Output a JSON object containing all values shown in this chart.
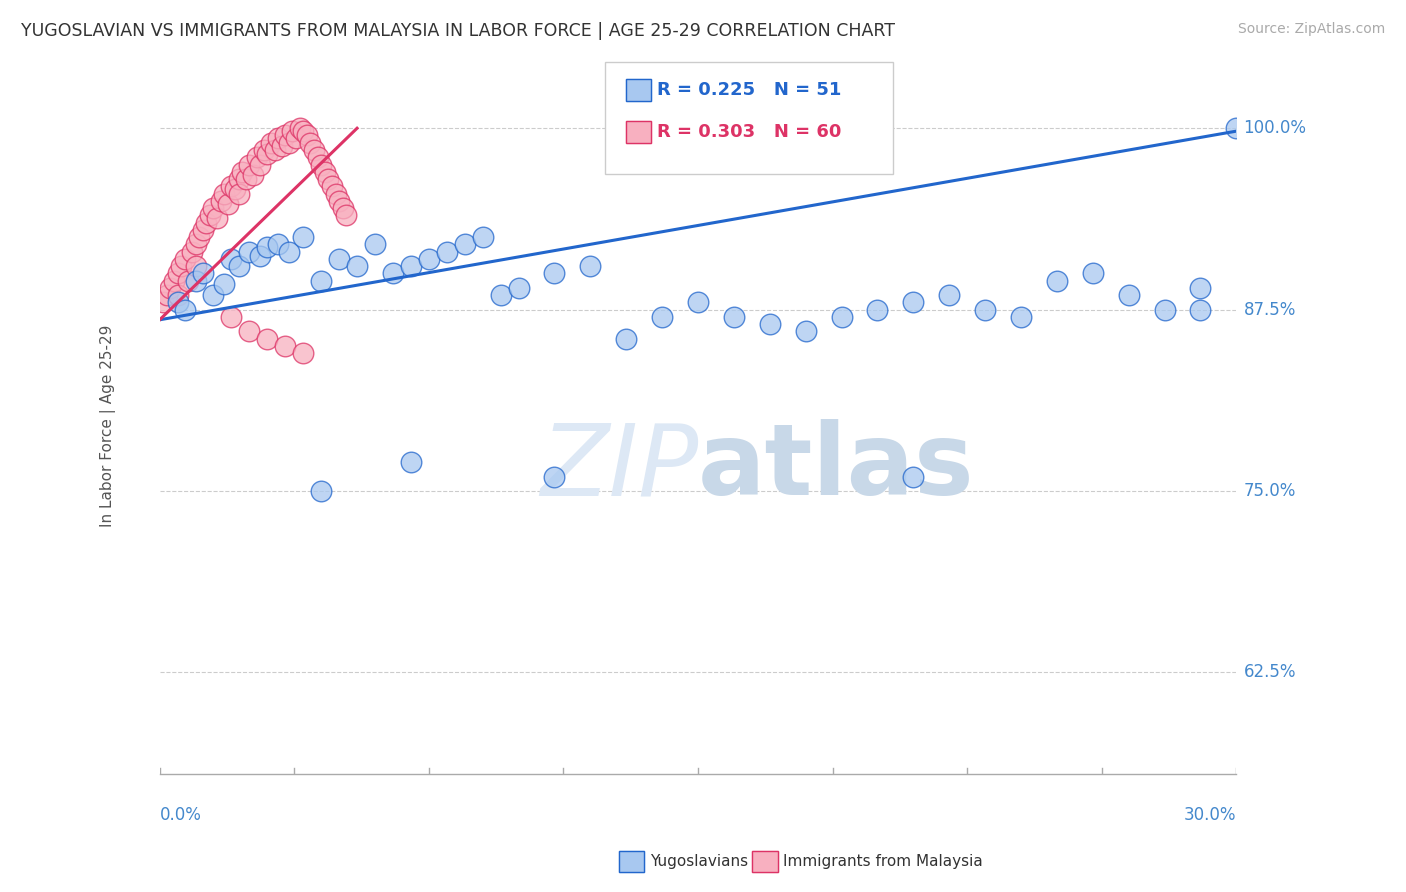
{
  "title": "YUGOSLAVIAN VS IMMIGRANTS FROM MALAYSIA IN LABOR FORCE | AGE 25-29 CORRELATION CHART",
  "source": "Source: ZipAtlas.com",
  "ylabel_axis": "In Labor Force | Age 25-29",
  "legend_blue_r": "0.225",
  "legend_blue_n": "51",
  "legend_pink_r": "0.303",
  "legend_pink_n": "60",
  "blue_color": "#a8c8f0",
  "pink_color": "#f8b0c0",
  "blue_line_color": "#2266cc",
  "pink_line_color": "#dd3366",
  "tick_color": "#4488cc",
  "watermark_color": "#dde8f5",
  "xlim": [
    0.0,
    0.3
  ],
  "ylim": [
    0.555,
    1.035
  ],
  "yticks": [
    1.0,
    0.875,
    0.75,
    0.625
  ],
  "ytick_labels": [
    "100.0%",
    "87.5%",
    "75.0%",
    "62.5%"
  ],
  "blue_scatter_x": [
    0.005,
    0.007,
    0.01,
    0.012,
    0.015,
    0.018,
    0.02,
    0.022,
    0.025,
    0.028,
    0.03,
    0.033,
    0.036,
    0.04,
    0.045,
    0.05,
    0.055,
    0.06,
    0.065,
    0.07,
    0.075,
    0.08,
    0.085,
    0.09,
    0.095,
    0.1,
    0.11,
    0.12,
    0.13,
    0.14,
    0.15,
    0.16,
    0.17,
    0.18,
    0.19,
    0.2,
    0.21,
    0.22,
    0.23,
    0.24,
    0.25,
    0.26,
    0.27,
    0.28,
    0.29,
    0.3,
    0.045,
    0.07,
    0.11,
    0.21,
    0.29
  ],
  "blue_scatter_y": [
    0.88,
    0.875,
    0.895,
    0.9,
    0.885,
    0.893,
    0.91,
    0.905,
    0.915,
    0.912,
    0.918,
    0.92,
    0.915,
    0.925,
    0.895,
    0.91,
    0.905,
    0.92,
    0.9,
    0.905,
    0.91,
    0.915,
    0.92,
    0.925,
    0.885,
    0.89,
    0.9,
    0.905,
    0.855,
    0.87,
    0.88,
    0.87,
    0.865,
    0.86,
    0.87,
    0.875,
    0.88,
    0.885,
    0.875,
    0.87,
    0.895,
    0.9,
    0.885,
    0.875,
    0.89,
    1.0,
    0.75,
    0.77,
    0.76,
    0.76,
    0.875
  ],
  "pink_scatter_x": [
    0.001,
    0.002,
    0.003,
    0.004,
    0.005,
    0.005,
    0.006,
    0.007,
    0.008,
    0.009,
    0.01,
    0.01,
    0.011,
    0.012,
    0.013,
    0.014,
    0.015,
    0.016,
    0.017,
    0.018,
    0.019,
    0.02,
    0.021,
    0.022,
    0.022,
    0.023,
    0.024,
    0.025,
    0.026,
    0.027,
    0.028,
    0.029,
    0.03,
    0.031,
    0.032,
    0.033,
    0.034,
    0.035,
    0.036,
    0.037,
    0.038,
    0.039,
    0.04,
    0.041,
    0.042,
    0.043,
    0.044,
    0.045,
    0.046,
    0.047,
    0.048,
    0.049,
    0.05,
    0.051,
    0.052,
    0.02,
    0.025,
    0.03,
    0.035,
    0.04
  ],
  "pink_scatter_y": [
    0.88,
    0.885,
    0.89,
    0.895,
    0.9,
    0.885,
    0.905,
    0.91,
    0.895,
    0.915,
    0.92,
    0.905,
    0.925,
    0.93,
    0.935,
    0.94,
    0.945,
    0.938,
    0.95,
    0.955,
    0.948,
    0.96,
    0.958,
    0.965,
    0.955,
    0.97,
    0.965,
    0.975,
    0.968,
    0.98,
    0.975,
    0.985,
    0.982,
    0.99,
    0.985,
    0.993,
    0.988,
    0.995,
    0.99,
    0.998,
    0.993,
    1.0,
    0.998,
    0.995,
    0.99,
    0.985,
    0.98,
    0.975,
    0.97,
    0.965,
    0.96,
    0.955,
    0.95,
    0.945,
    0.94,
    0.87,
    0.86,
    0.855,
    0.85,
    0.845
  ],
  "blue_line_x": [
    0.0,
    0.3
  ],
  "blue_line_y": [
    0.868,
    0.998
  ],
  "pink_line_x": [
    0.0,
    0.055
  ],
  "pink_line_y": [
    0.868,
    1.0
  ]
}
